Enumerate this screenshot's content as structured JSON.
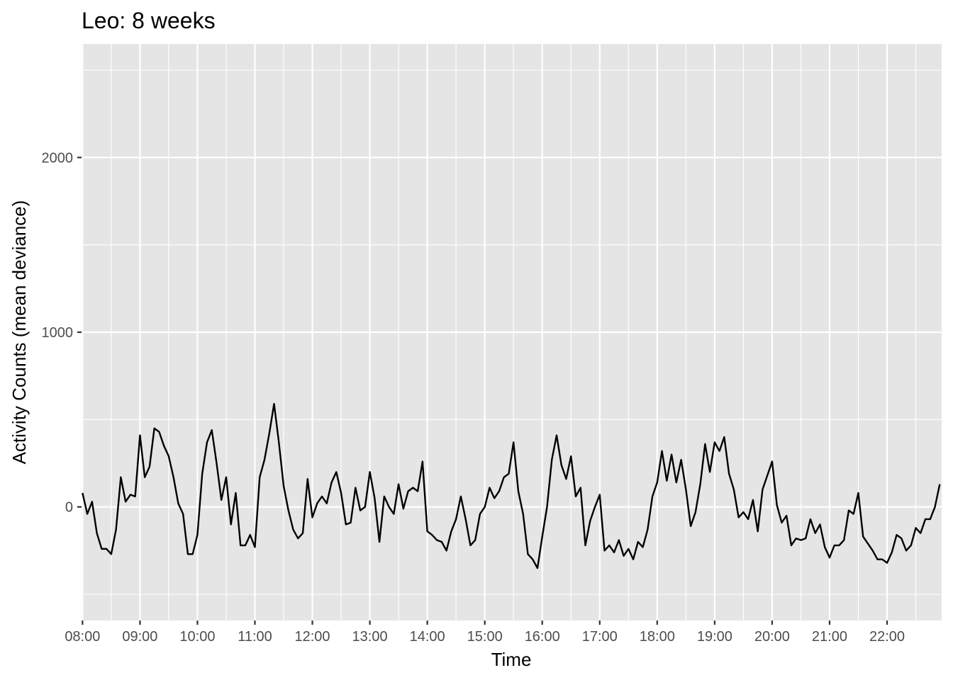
{
  "chart_data": {
    "type": "line",
    "title": "Leo: 8 weeks",
    "xlabel": "Time",
    "ylabel": "Activity Counts (mean deviance)",
    "x_ticks": [
      "08:00",
      "09:00",
      "10:00",
      "11:00",
      "12:00",
      "13:00",
      "14:00",
      "15:00",
      "16:00",
      "17:00",
      "18:00",
      "19:00",
      "20:00",
      "21:00",
      "22:00"
    ],
    "y_ticks": [
      0,
      1000,
      2000
    ],
    "xlim": [
      "07:59",
      "22:57"
    ],
    "ylim": [
      -650,
      2650
    ],
    "grid": true,
    "background": "#e5e5e5",
    "grid_color": "#ffffff",
    "line_color": "#000000",
    "sample_interval_minutes": 5,
    "x_start": "08:00",
    "values": [
      80,
      -40,
      30,
      -150,
      -240,
      -240,
      -270,
      -130,
      170,
      30,
      70,
      60,
      410,
      170,
      230,
      450,
      430,
      350,
      290,
      170,
      20,
      -40,
      -270,
      -270,
      -160,
      190,
      370,
      440,
      250,
      40,
      170,
      -100,
      80,
      -220,
      -220,
      -160,
      -230,
      170,
      270,
      420,
      590,
      370,
      120,
      -20,
      -130,
      -180,
      -150,
      160,
      -60,
      20,
      60,
      20,
      140,
      200,
      80,
      -100,
      -90,
      110,
      -20,
      0,
      200,
      50,
      -200,
      60,
      0,
      -40,
      130,
      -10,
      90,
      110,
      90,
      260,
      -140,
      -160,
      -190,
      -200,
      -250,
      -140,
      -70,
      60,
      -70,
      -220,
      -190,
      -40,
      0,
      110,
      50,
      90,
      170,
      190,
      370,
      90,
      -40,
      -270,
      -300,
      -350,
      -170,
      0,
      270,
      410,
      240,
      160,
      290,
      60,
      110,
      -220,
      -80,
      0,
      70,
      -250,
      -220,
      -260,
      -190,
      -280,
      -240,
      -300,
      -200,
      -230,
      -130,
      60,
      140,
      320,
      150,
      300,
      140,
      270,
      100,
      -110,
      -30,
      130,
      360,
      200,
      370,
      320,
      400,
      190,
      100,
      -60,
      -30,
      -70,
      40,
      -140,
      100,
      180,
      260,
      10,
      -90,
      -50,
      -220,
      -180,
      -190,
      -180,
      -70,
      -150,
      -100,
      -230,
      -290,
      -220,
      -220,
      -190,
      -20,
      -40,
      80,
      -170,
      -210,
      -250,
      -300,
      -300,
      -320,
      -260,
      -160,
      -180,
      -250,
      -220,
      -120,
      -150,
      -70,
      -70,
      0,
      130
    ]
  }
}
